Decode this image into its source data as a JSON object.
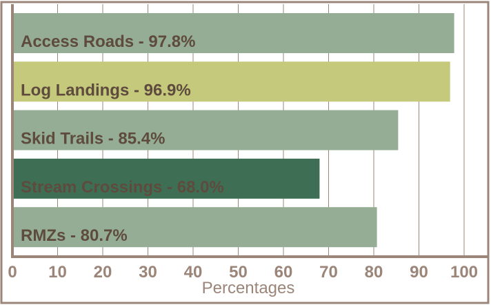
{
  "chart_data": {
    "type": "bar",
    "orientation": "horizontal",
    "xlabel": "Percentages",
    "values": [
      97.8,
      96.9,
      85.4,
      68.0,
      80.7
    ],
    "value_labels": [
      "Access Roads - 97.8%",
      "Log Landings - 96.9%",
      "Skid Trails - 85.4%",
      "Stream Crossings - 68.0%",
      "RMZs - 80.7%"
    ],
    "colors": [
      "#94ad94",
      "#c4c97b",
      "#94ad94",
      "#3e6f54",
      "#94ad94"
    ],
    "xlim": [
      0,
      100
    ],
    "xticks": [
      0,
      10,
      20,
      30,
      40,
      50,
      60,
      70,
      80,
      90,
      100
    ],
    "grid": true
  }
}
